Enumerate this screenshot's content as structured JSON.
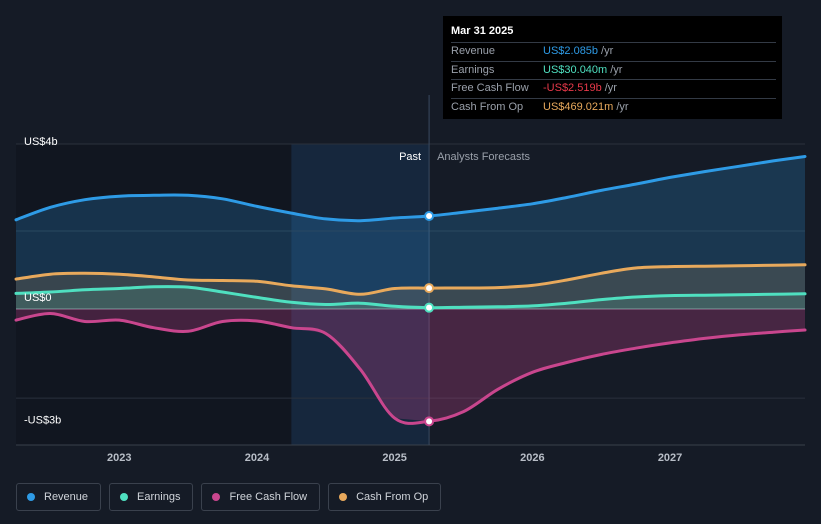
{
  "chart_data": {
    "type": "line",
    "x_ticks": [
      2023,
      2024,
      2025,
      2026,
      2027
    ],
    "xlim": [
      2022.25,
      2027.98
    ],
    "ylim": [
      -3.05,
      3.7
    ],
    "y_labels": [
      {
        "value": 3.5,
        "text": "US$4b"
      },
      {
        "value": 0,
        "text": "US$0"
      },
      {
        "value": -2.75,
        "text": "-US$3b"
      }
    ],
    "past_label": "Past",
    "forecast_label": "Analysts Forecasts",
    "divider_x": 2025.25,
    "shade_start_x": 2024.25,
    "series": [
      {
        "name": "Revenue",
        "color": "#2e9be6",
        "points": [
          [
            2022.25,
            2.0
          ],
          [
            2022.5,
            2.28
          ],
          [
            2022.75,
            2.45
          ],
          [
            2023.0,
            2.53
          ],
          [
            2023.25,
            2.55
          ],
          [
            2023.5,
            2.55
          ],
          [
            2023.75,
            2.47
          ],
          [
            2024.0,
            2.3
          ],
          [
            2024.25,
            2.15
          ],
          [
            2024.5,
            2.02
          ],
          [
            2024.75,
            1.98
          ],
          [
            2025.0,
            2.04
          ],
          [
            2025.25,
            2.085
          ],
          [
            2025.5,
            2.17
          ],
          [
            2025.75,
            2.26
          ],
          [
            2026.0,
            2.36
          ],
          [
            2026.25,
            2.5
          ],
          [
            2026.5,
            2.66
          ],
          [
            2026.75,
            2.8
          ],
          [
            2027.0,
            2.95
          ],
          [
            2027.25,
            3.08
          ],
          [
            2027.5,
            3.2
          ],
          [
            2027.75,
            3.32
          ],
          [
            2027.98,
            3.42
          ]
        ]
      },
      {
        "name": "Earnings",
        "color": "#4fe0c0",
        "points": [
          [
            2022.25,
            0.35
          ],
          [
            2022.5,
            0.38
          ],
          [
            2022.75,
            0.43
          ],
          [
            2023.0,
            0.46
          ],
          [
            2023.25,
            0.5
          ],
          [
            2023.5,
            0.49
          ],
          [
            2023.75,
            0.38
          ],
          [
            2024.0,
            0.26
          ],
          [
            2024.25,
            0.15
          ],
          [
            2024.5,
            0.1
          ],
          [
            2024.75,
            0.13
          ],
          [
            2025.0,
            0.06
          ],
          [
            2025.25,
            0.03
          ],
          [
            2025.5,
            0.04
          ],
          [
            2025.75,
            0.05
          ],
          [
            2026.0,
            0.07
          ],
          [
            2026.25,
            0.13
          ],
          [
            2026.5,
            0.21
          ],
          [
            2026.75,
            0.27
          ],
          [
            2027.0,
            0.3
          ],
          [
            2027.25,
            0.31
          ],
          [
            2027.5,
            0.32
          ],
          [
            2027.75,
            0.33
          ],
          [
            2027.98,
            0.34
          ]
        ]
      },
      {
        "name": "Free Cash Flow",
        "color": "#c9468e",
        "points": [
          [
            2022.25,
            -0.25
          ],
          [
            2022.5,
            -0.1
          ],
          [
            2022.75,
            -0.28
          ],
          [
            2023.0,
            -0.25
          ],
          [
            2023.25,
            -0.42
          ],
          [
            2023.5,
            -0.5
          ],
          [
            2023.75,
            -0.28
          ],
          [
            2024.0,
            -0.27
          ],
          [
            2024.25,
            -0.42
          ],
          [
            2024.5,
            -0.55
          ],
          [
            2024.75,
            -1.35
          ],
          [
            2025.0,
            -2.45
          ],
          [
            2025.25,
            -2.519
          ],
          [
            2025.5,
            -2.3
          ],
          [
            2025.75,
            -1.8
          ],
          [
            2026.0,
            -1.42
          ],
          [
            2026.25,
            -1.2
          ],
          [
            2026.5,
            -1.02
          ],
          [
            2026.75,
            -0.88
          ],
          [
            2027.0,
            -0.76
          ],
          [
            2027.25,
            -0.66
          ],
          [
            2027.5,
            -0.58
          ],
          [
            2027.75,
            -0.52
          ],
          [
            2027.98,
            -0.47
          ]
        ]
      },
      {
        "name": "Cash From Op",
        "color": "#e8a95c",
        "points": [
          [
            2022.25,
            0.67
          ],
          [
            2022.5,
            0.78
          ],
          [
            2022.75,
            0.8
          ],
          [
            2023.0,
            0.78
          ],
          [
            2023.25,
            0.72
          ],
          [
            2023.5,
            0.65
          ],
          [
            2023.75,
            0.64
          ],
          [
            2024.0,
            0.62
          ],
          [
            2024.25,
            0.52
          ],
          [
            2024.5,
            0.45
          ],
          [
            2024.75,
            0.33
          ],
          [
            2025.0,
            0.46
          ],
          [
            2025.25,
            0.469
          ],
          [
            2025.5,
            0.47
          ],
          [
            2025.75,
            0.48
          ],
          [
            2026.0,
            0.53
          ],
          [
            2026.25,
            0.65
          ],
          [
            2026.5,
            0.8
          ],
          [
            2026.75,
            0.92
          ],
          [
            2027.0,
            0.95
          ],
          [
            2027.25,
            0.96
          ],
          [
            2027.5,
            0.97
          ],
          [
            2027.75,
            0.98
          ],
          [
            2027.98,
            0.99
          ]
        ]
      }
    ],
    "highlight_x": 2025.25
  },
  "tooltip": {
    "date": "Mar 31 2025",
    "rows": [
      {
        "label": "Revenue",
        "value": "US$2.085b",
        "unit": "/yr",
        "color": "#2e9be6"
      },
      {
        "label": "Earnings",
        "value": "US$30.040m",
        "unit": "/yr",
        "color": "#4fe0c0"
      },
      {
        "label": "Free Cash Flow",
        "value": "-US$2.519b",
        "unit": "/yr",
        "color": "#e8394a"
      },
      {
        "label": "Cash From Op",
        "value": "US$469.021m",
        "unit": "/yr",
        "color": "#e8a95c"
      }
    ]
  },
  "legend": [
    {
      "label": "Revenue",
      "color": "#2e9be6"
    },
    {
      "label": "Earnings",
      "color": "#4fe0c0"
    },
    {
      "label": "Free Cash Flow",
      "color": "#c9468e"
    },
    {
      "label": "Cash From Op",
      "color": "#e8a95c"
    }
  ]
}
